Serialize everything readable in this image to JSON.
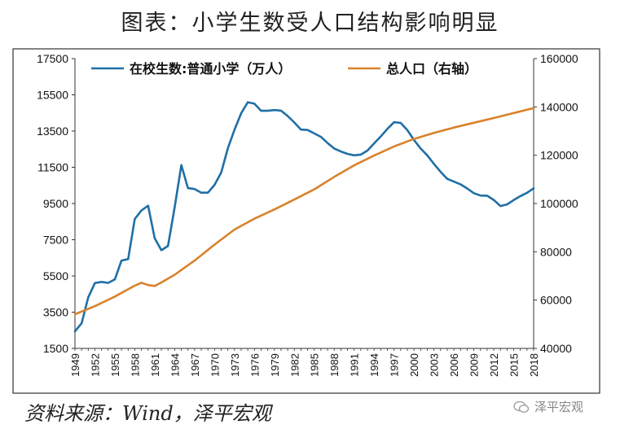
{
  "header": {
    "title": "图表：小学生数受人口结构影响明显"
  },
  "footer": {
    "source": "资料来源：Wind，泽平宏观",
    "watermark": "泽平宏观"
  },
  "colors": {
    "students": "#1f6fa6",
    "population": "#d9822b",
    "border": "#333333"
  },
  "chart_data": {
    "type": "line",
    "title": "图表：小学生数受人口结构影响明显",
    "x_ticks": [
      "1949",
      "1952",
      "1955",
      "1958",
      "1961",
      "1964",
      "1967",
      "1970",
      "1973",
      "1976",
      "1979",
      "1982",
      "1985",
      "1988",
      "1991",
      "1994",
      "1997",
      "2000",
      "2003",
      "2006",
      "2009",
      "2012",
      "2015",
      "2018"
    ],
    "y_left": {
      "ticks": [
        "17500",
        "15500",
        "13500",
        "11500",
        "9500",
        "7500",
        "5500",
        "3500",
        "1500"
      ],
      "range": [
        1500,
        17500
      ]
    },
    "y_right": {
      "ticks": [
        "160000",
        "140000",
        "120000",
        "100000",
        "80000",
        "60000",
        "40000"
      ],
      "range": [
        40000,
        160000
      ]
    },
    "grid": false,
    "legend_position": "top",
    "series": [
      {
        "name": "在校生数:普通小学（万人）",
        "axis": "left",
        "points": [
          [
            1949,
            2440
          ],
          [
            1950,
            2890
          ],
          [
            1951,
            4320
          ],
          [
            1952,
            5110
          ],
          [
            1953,
            5170
          ],
          [
            1954,
            5120
          ],
          [
            1955,
            5310
          ],
          [
            1956,
            6350
          ],
          [
            1957,
            6430
          ],
          [
            1958,
            8640
          ],
          [
            1959,
            9120
          ],
          [
            1960,
            9380
          ],
          [
            1961,
            7580
          ],
          [
            1962,
            6920
          ],
          [
            1963,
            7160
          ],
          [
            1964,
            9300
          ],
          [
            1965,
            11620
          ],
          [
            1966,
            10350
          ],
          [
            1967,
            10300
          ],
          [
            1968,
            10100
          ],
          [
            1969,
            10100
          ],
          [
            1970,
            10530
          ],
          [
            1971,
            11210
          ],
          [
            1972,
            12550
          ],
          [
            1973,
            13570
          ],
          [
            1974,
            14480
          ],
          [
            1975,
            15090
          ],
          [
            1976,
            15010
          ],
          [
            1977,
            14620
          ],
          [
            1978,
            14620
          ],
          [
            1979,
            14660
          ],
          [
            1980,
            14630
          ],
          [
            1981,
            14330
          ],
          [
            1982,
            13970
          ],
          [
            1983,
            13580
          ],
          [
            1984,
            13560
          ],
          [
            1985,
            13370
          ],
          [
            1986,
            13180
          ],
          [
            1987,
            12840
          ],
          [
            1988,
            12540
          ],
          [
            1989,
            12370
          ],
          [
            1990,
            12240
          ],
          [
            1991,
            12160
          ],
          [
            1992,
            12200
          ],
          [
            1993,
            12420
          ],
          [
            1994,
            12820
          ],
          [
            1995,
            13200
          ],
          [
            1996,
            13620
          ],
          [
            1997,
            13990
          ],
          [
            1998,
            13950
          ],
          [
            1999,
            13550
          ],
          [
            2000,
            13010
          ],
          [
            2001,
            12540
          ],
          [
            2002,
            12160
          ],
          [
            2003,
            11690
          ],
          [
            2004,
            11250
          ],
          [
            2005,
            10860
          ],
          [
            2006,
            10710
          ],
          [
            2007,
            10560
          ],
          [
            2008,
            10330
          ],
          [
            2009,
            10070
          ],
          [
            2010,
            9940
          ],
          [
            2011,
            9930
          ],
          [
            2012,
            9700
          ],
          [
            2013,
            9360
          ],
          [
            2014,
            9450
          ],
          [
            2015,
            9690
          ],
          [
            2016,
            9910
          ],
          [
            2017,
            10090
          ],
          [
            2018,
            10340
          ]
        ]
      },
      {
        "name": "总人口（右轴）",
        "axis": "right",
        "points": [
          [
            1949,
            54170
          ],
          [
            1952,
            57480
          ],
          [
            1955,
            61460
          ],
          [
            1958,
            65990
          ],
          [
            1959,
            67200
          ],
          [
            1960,
            66210
          ],
          [
            1961,
            65860
          ],
          [
            1962,
            67300
          ],
          [
            1964,
            70500
          ],
          [
            1967,
            76370
          ],
          [
            1970,
            82990
          ],
          [
            1973,
            89210
          ],
          [
            1976,
            93720
          ],
          [
            1979,
            97540
          ],
          [
            1982,
            101650
          ],
          [
            1985,
            105850
          ],
          [
            1988,
            111030
          ],
          [
            1991,
            115820
          ],
          [
            1994,
            119850
          ],
          [
            1997,
            123630
          ],
          [
            2000,
            126740
          ],
          [
            2003,
            129230
          ],
          [
            2006,
            131450
          ],
          [
            2009,
            133450
          ],
          [
            2012,
            135400
          ],
          [
            2015,
            137460
          ],
          [
            2018,
            139540
          ]
        ]
      }
    ]
  }
}
